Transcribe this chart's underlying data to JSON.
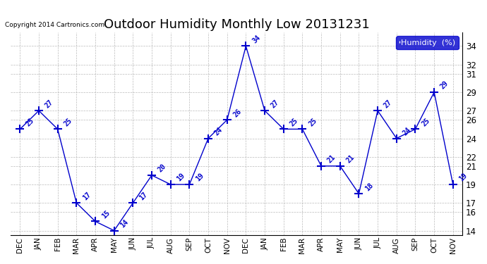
{
  "title": "Outdoor Humidity Monthly Low 20131231",
  "copyright": "Copyright 2014 Cartronics.com",
  "legend_label": "Humidity  (%)",
  "x_labels": [
    "DEC",
    "JAN",
    "FEB",
    "MAR",
    "APR",
    "MAY",
    "JUN",
    "JUL",
    "AUG",
    "SEP",
    "OCT",
    "NOV",
    "DEC",
    "JAN",
    "FEB",
    "MAR",
    "APR",
    "MAY",
    "JUN",
    "JUL",
    "AUG",
    "SEP",
    "OCT",
    "NOV"
  ],
  "y_values": [
    25,
    27,
    25,
    17,
    15,
    14,
    17,
    20,
    19,
    19,
    24,
    26,
    34,
    27,
    25,
    25,
    21,
    21,
    18,
    27,
    24,
    25,
    29,
    19
  ],
  "y_ticks": [
    14,
    16,
    17,
    19,
    21,
    22,
    24,
    26,
    27,
    29,
    31,
    32,
    34
  ],
  "ylim": [
    13.5,
    35.5
  ],
  "line_color": "#0000cc",
  "marker": "+",
  "marker_size": 8,
  "label_fontsize": 7,
  "title_fontsize": 13,
  "bg_color": "#ffffff",
  "grid_color": "#aaaaaa",
  "legend_bg": "#0000cc",
  "legend_fg": "#ffffff"
}
